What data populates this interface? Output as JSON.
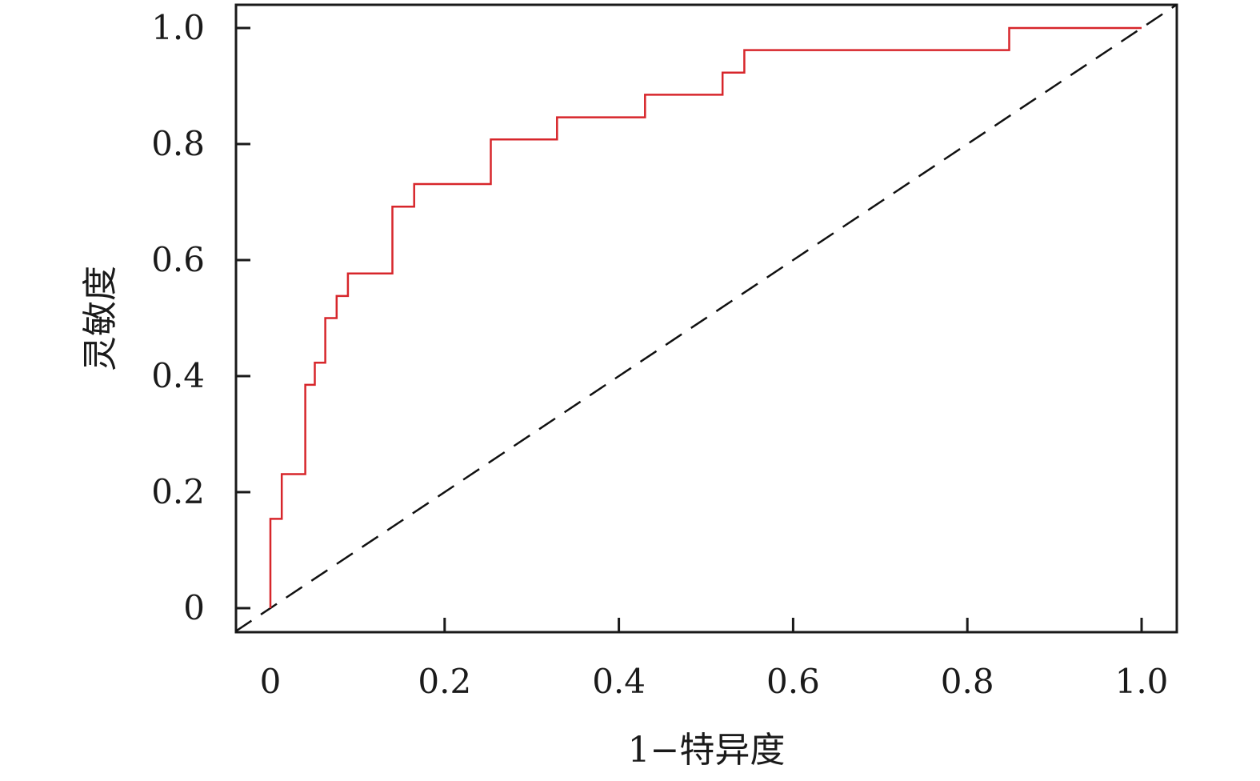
{
  "chart_data": {
    "type": "line",
    "xlabel": "1−特异度",
    "ylabel": "灵敏度",
    "xlim": [
      0,
      1.0
    ],
    "ylim": [
      0,
      1.0
    ],
    "xticks": [
      "0",
      "0.2",
      "0.4",
      "0.6",
      "0.8",
      "1.0"
    ],
    "yticks": [
      "0",
      "0.2",
      "0.4",
      "0.6",
      "0.8",
      "1.0"
    ],
    "grid": false,
    "series": [
      {
        "style": "step",
        "color": "#d7262b",
        "points": [
          [
            0.0,
            0.0
          ],
          [
            0.0,
            0.154
          ],
          [
            0.013,
            0.154
          ],
          [
            0.013,
            0.231
          ],
          [
            0.04,
            0.231
          ],
          [
            0.04,
            0.385
          ],
          [
            0.051,
            0.385
          ],
          [
            0.051,
            0.423
          ],
          [
            0.063,
            0.423
          ],
          [
            0.063,
            0.5
          ],
          [
            0.076,
            0.5
          ],
          [
            0.076,
            0.538
          ],
          [
            0.089,
            0.538
          ],
          [
            0.089,
            0.577
          ],
          [
            0.14,
            0.577
          ],
          [
            0.14,
            0.692
          ],
          [
            0.165,
            0.692
          ],
          [
            0.165,
            0.731
          ],
          [
            0.253,
            0.731
          ],
          [
            0.253,
            0.808
          ],
          [
            0.329,
            0.808
          ],
          [
            0.329,
            0.846
          ],
          [
            0.43,
            0.846
          ],
          [
            0.43,
            0.885
          ],
          [
            0.519,
            0.885
          ],
          [
            0.519,
            0.923
          ],
          [
            0.544,
            0.923
          ],
          [
            0.544,
            0.962
          ],
          [
            0.848,
            0.962
          ],
          [
            0.848,
            1.0
          ],
          [
            1.0,
            1.0
          ]
        ]
      },
      {
        "style": "dashed",
        "color": "#111111",
        "points": [
          [
            -0.04,
            -0.04
          ],
          [
            1.04,
            1.04
          ]
        ]
      }
    ]
  }
}
